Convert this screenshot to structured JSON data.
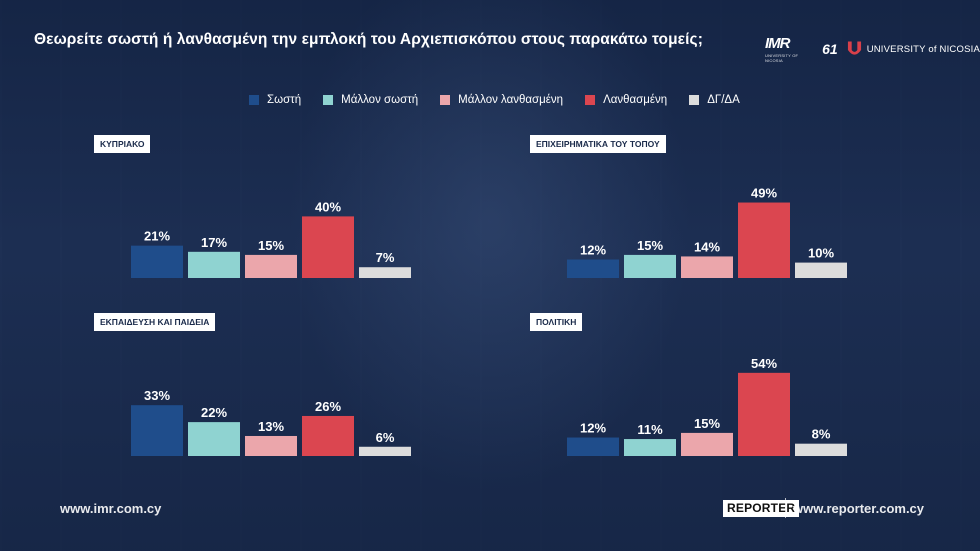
{
  "title": "Θεωρείτε σωστή ή λανθασμένη την εμπλοκή του Αρχιεπισκόπου στους παρακάτω τομείς;",
  "logos": {
    "imr": "IMR",
    "imr_sub": "UNIVERSITY OF NICOSIA",
    "sixty_one": "61",
    "unic": "UNIVERSITY of NICOSIA"
  },
  "colors": [
    "#1f4d8b",
    "#8fd3d1",
    "#eba6ab",
    "#db4650",
    "#dcdcdc"
  ],
  "chart_data": [
    {
      "type": "bar",
      "title": "ΚΥΠΡΙΑΚΟ",
      "categories": [
        "Σωστή",
        "Μάλλον σωστή",
        "Μάλλον λανθασμένη",
        "Λανθασμένη",
        "ΔΓ/ΔΑ"
      ],
      "values": [
        21,
        17,
        15,
        40,
        7
      ],
      "labels": [
        "21%",
        "17%",
        "15%",
        "40%",
        "7%"
      ]
    },
    {
      "type": "bar",
      "title": "ΕΠΙΧΕΙΡΗΜΑΤΙΚΑ ΤΟΥ ΤΟΠΟΥ",
      "categories": [
        "Σωστή",
        "Μάλλον σωστή",
        "Μάλλον λανθασμένη",
        "Λανθασμένη",
        "ΔΓ/ΔΑ"
      ],
      "values": [
        12,
        15,
        14,
        49,
        10
      ],
      "labels": [
        "12%",
        "15%",
        "14%",
        "49%",
        "10%"
      ]
    },
    {
      "type": "bar",
      "title": "ΕΚΠΑΙΔΕΥΣΗ ΚΑΙ ΠΑΙΔΕΙΑ",
      "categories": [
        "Σωστή",
        "Μάλλον σωστή",
        "Μάλλον λανθασμένη",
        "Λανθασμένη",
        "ΔΓ/ΔΑ"
      ],
      "values": [
        33,
        22,
        13,
        26,
        6
      ],
      "labels": [
        "33%",
        "22%",
        "13%",
        "26%",
        "6%"
      ]
    },
    {
      "type": "bar",
      "title": "ΠΟΛΙΤΙΚΗ",
      "categories": [
        "Σωστή",
        "Μάλλον σωστή",
        "Μάλλον λανθασμένη",
        "Λανθασμένη",
        "ΔΓ/ΔΑ"
      ],
      "values": [
        12,
        11,
        15,
        54,
        8
      ],
      "labels": [
        "12%",
        "11%",
        "15%",
        "54%",
        "8%"
      ]
    }
  ],
  "legend": [
    "Σωστή",
    "Μάλλον σωστή",
    "Μάλλον λανθασμένη",
    "Λανθασμένη",
    "ΔΓ/ΔΑ"
  ],
  "footer": {
    "left": "www.imr.com.cy",
    "badge": "REPORTER",
    "right": "www.reporter.com.cy"
  }
}
